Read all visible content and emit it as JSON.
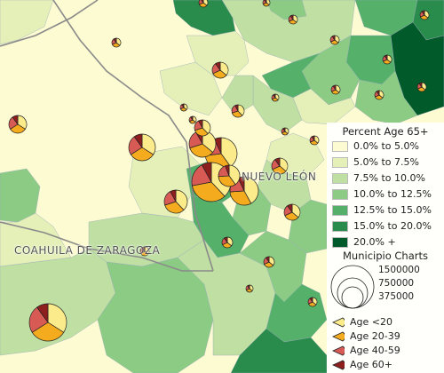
{
  "map": {
    "state_labels": [
      "NUEVO LEÓN",
      "COAHUILA DE ZARAGOZA"
    ]
  },
  "legend": {
    "title": "Percent Age 65+",
    "classes": [
      {
        "label": "0.0% to 5.0%",
        "color": "#fdfbd2"
      },
      {
        "label": "5.0% to 7.5%",
        "color": "#e4f0b8"
      },
      {
        "label": "7.5% to 10.0%",
        "color": "#bfe0a2"
      },
      {
        "label": "10.0% to 12.5%",
        "color": "#8ccb84"
      },
      {
        "label": "12.5% to 15.0%",
        "color": "#55b06a"
      },
      {
        "label": "15.0% to 20.0%",
        "color": "#2a8c4c"
      },
      {
        "label": "20.0% +",
        "color": "#005a2a"
      }
    ],
    "chart_title": "Municipio Charts",
    "sizes": [
      "1500000",
      "750000",
      "375000"
    ],
    "age_groups": [
      {
        "label": "Age <20",
        "color": "#fbeb8a"
      },
      {
        "label": "Age 20-39",
        "color": "#f5ab1e"
      },
      {
        "label": "Age 40-59",
        "color": "#d85a55"
      },
      {
        "label": "Age 60+",
        "color": "#8e1f1f"
      }
    ]
  }
}
